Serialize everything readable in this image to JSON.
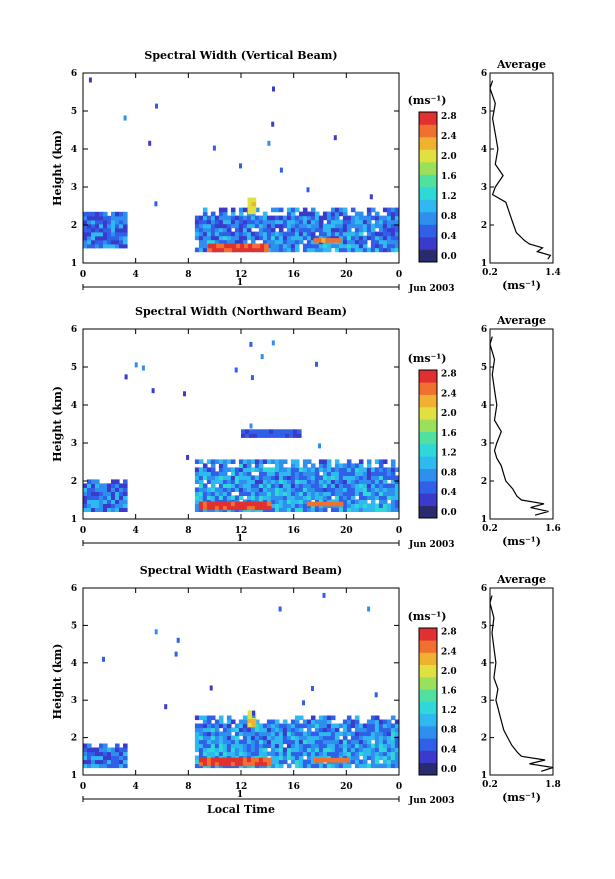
{
  "chart_data": [
    {
      "type": "heatmap",
      "title": "Spectral Width (Vertical Beam)",
      "ylabel": "Height (km)",
      "xlabel": "",
      "x_ticks": [
        "0",
        "4",
        "8",
        "12",
        "16",
        "20",
        "0"
      ],
      "y_ticks": [
        "1",
        "2",
        "3",
        "4",
        "5",
        "6"
      ],
      "xlim": [
        0,
        24
      ],
      "ylim": [
        1,
        6
      ],
      "day_label": "1",
      "date_label": "Jun 2003",
      "colorbar": {
        "unit": "(ms⁻¹)",
        "ticks": [
          "0.0",
          "0.4",
          "0.8",
          "1.2",
          "1.6",
          "2.0",
          "2.4",
          "2.8"
        ],
        "range": [
          0,
          3.0
        ]
      },
      "data_blocks": [
        {
          "t0": 0,
          "t1": 3.3,
          "h0": 1.4,
          "h1": 2.3,
          "v": 0.8
        },
        {
          "t0": 8.5,
          "t1": 23.8,
          "h0": 1.3,
          "h1": 2.4,
          "v": 0.9
        },
        {
          "t0": 9.5,
          "t1": 14,
          "h0": 1.3,
          "h1": 1.45,
          "v": 2.8
        },
        {
          "t0": 17.5,
          "t1": 19.5,
          "h0": 1.55,
          "h1": 1.62,
          "v": 2.6
        },
        {
          "t0": 12.5,
          "t1": 13.0,
          "h0": 2.3,
          "h1": 2.7,
          "v": 2.2
        }
      ],
      "average_profile": {
        "title": "Average",
        "xlabel": "(ms⁻¹)",
        "x_ticks": [
          "0.2",
          "1.4"
        ],
        "xlim": [
          0.2,
          1.4
        ],
        "heights": [
          1.1,
          1.2,
          1.3,
          1.4,
          1.5,
          1.6,
          1.8,
          2.0,
          2.2,
          2.4,
          2.6,
          2.8,
          3.0,
          3.3,
          3.6,
          4.0,
          4.4,
          4.8,
          5.2,
          5.6,
          5.8
        ],
        "values": [
          1.3,
          1.35,
          1.1,
          1.2,
          0.95,
          0.85,
          0.7,
          0.65,
          0.6,
          0.55,
          0.5,
          0.25,
          0.3,
          0.45,
          0.3,
          0.35,
          0.3,
          0.25,
          0.3,
          0.2,
          0.25
        ]
      }
    },
    {
      "type": "heatmap",
      "title": "Spectral Width (Northward Beam)",
      "ylabel": "Height (km)",
      "xlabel": "",
      "x_ticks": [
        "0",
        "4",
        "8",
        "12",
        "16",
        "20",
        "0"
      ],
      "y_ticks": [
        "1",
        "2",
        "3",
        "4",
        "5",
        "6"
      ],
      "xlim": [
        0,
        24
      ],
      "ylim": [
        1,
        6
      ],
      "day_label": "1",
      "date_label": "Jun 2003",
      "colorbar": {
        "unit": "(ms⁻¹)",
        "ticks": [
          "0.0",
          "0.4",
          "0.8",
          "1.2",
          "1.6",
          "2.0",
          "2.4",
          "2.8"
        ],
        "range": [
          0,
          3.0
        ]
      },
      "data_blocks": [
        {
          "t0": 0,
          "t1": 3.3,
          "h0": 1.2,
          "h1": 2.0,
          "v": 0.8
        },
        {
          "t0": 8.5,
          "t1": 23.8,
          "h0": 1.2,
          "h1": 2.5,
          "v": 1.0
        },
        {
          "t0": 8.8,
          "t1": 14.2,
          "h0": 1.25,
          "h1": 1.4,
          "v": 2.8
        },
        {
          "t0": 17.0,
          "t1": 19.5,
          "h0": 1.35,
          "h1": 1.45,
          "v": 2.6
        },
        {
          "t0": 12,
          "t1": 16.5,
          "h0": 3.15,
          "h1": 3.35,
          "v": 0.6
        }
      ],
      "average_profile": {
        "title": "Average",
        "xlabel": "(ms⁻¹)",
        "x_ticks": [
          "0.2",
          "1.6"
        ],
        "xlim": [
          0.2,
          1.6
        ],
        "heights": [
          1.1,
          1.2,
          1.3,
          1.4,
          1.5,
          1.6,
          1.8,
          2.0,
          2.2,
          2.4,
          2.6,
          2.8,
          3.0,
          3.3,
          3.6,
          4.0,
          4.4,
          4.8,
          5.2,
          5.6,
          5.8
        ],
        "values": [
          1.2,
          1.5,
          1.1,
          1.4,
          0.9,
          0.8,
          0.7,
          0.55,
          0.5,
          0.45,
          0.35,
          0.3,
          0.35,
          0.45,
          0.3,
          0.35,
          0.3,
          0.25,
          0.3,
          0.2,
          0.25
        ]
      }
    },
    {
      "type": "heatmap",
      "title": "Spectral Width (Eastward Beam)",
      "ylabel": "Height (km)",
      "xlabel": "Local Time",
      "x_ticks": [
        "0",
        "4",
        "8",
        "12",
        "16",
        "20",
        "0"
      ],
      "y_ticks": [
        "1",
        "2",
        "3",
        "4",
        "5",
        "6"
      ],
      "xlim": [
        0,
        24
      ],
      "ylim": [
        1,
        6
      ],
      "day_label": "1",
      "date_label": "Jun 2003",
      "colorbar": {
        "unit": "(ms⁻¹)",
        "ticks": [
          "0.0",
          "0.4",
          "0.8",
          "1.2",
          "1.6",
          "2.0",
          "2.4",
          "2.8"
        ],
        "range": [
          0,
          3.0
        ]
      },
      "data_blocks": [
        {
          "t0": 0,
          "t1": 3.3,
          "h0": 1.2,
          "h1": 1.8,
          "v": 0.8
        },
        {
          "t0": 8.5,
          "t1": 23.8,
          "h0": 1.2,
          "h1": 2.5,
          "v": 1.0
        },
        {
          "t0": 8.8,
          "t1": 14.0,
          "h0": 1.25,
          "h1": 1.4,
          "v": 2.8
        },
        {
          "t0": 17.5,
          "t1": 20,
          "h0": 1.35,
          "h1": 1.45,
          "v": 2.6
        },
        {
          "t0": 12.5,
          "t1": 13.0,
          "h0": 2.3,
          "h1": 2.7,
          "v": 2.2
        }
      ],
      "average_profile": {
        "title": "Average",
        "xlabel": "(ms⁻¹)",
        "x_ticks": [
          "0.2",
          "1.8"
        ],
        "xlim": [
          0.2,
          1.8
        ],
        "heights": [
          1.1,
          1.2,
          1.3,
          1.4,
          1.5,
          1.6,
          1.8,
          2.0,
          2.2,
          2.4,
          2.6,
          2.8,
          3.0,
          3.3,
          3.6,
          4.0,
          4.4,
          4.8,
          5.2,
          5.6,
          5.8
        ],
        "values": [
          1.5,
          1.8,
          1.2,
          1.6,
          1.0,
          0.9,
          0.75,
          0.65,
          0.55,
          0.5,
          0.45,
          0.4,
          0.35,
          0.4,
          0.3,
          0.35,
          0.3,
          0.25,
          0.3,
          0.2,
          0.25
        ]
      }
    }
  ],
  "colors": {
    "palette": [
      "#2a2a6e",
      "#3a3acb",
      "#3060e8",
      "#2f8fef",
      "#30b8f0",
      "#2fd8d8",
      "#50e0a0",
      "#9ae05a",
      "#e0e040",
      "#f0b030",
      "#f07030",
      "#e03030"
    ]
  }
}
